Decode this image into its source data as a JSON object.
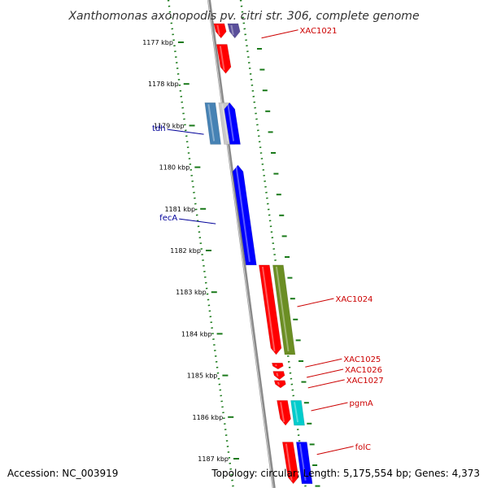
{
  "title": "Xanthomonas axonopodis pv. citri str. 306, complete genome",
  "footer": {
    "accession": "Accession: NC_003919",
    "summary": "Topology: circular; Length: 5,175,554 bp; Genes: 4,373"
  },
  "ticks": [
    {
      "kbp": 1177,
      "label": "1177 kbp"
    },
    {
      "kbp": 1178,
      "label": "1178 kbp"
    },
    {
      "kbp": 1179,
      "label": "1179 kbp"
    },
    {
      "kbp": 1180,
      "label": "1180 kbp"
    },
    {
      "kbp": 1181,
      "label": "1181 kbp"
    },
    {
      "kbp": 1182,
      "label": "1182 kbp"
    },
    {
      "kbp": 1183,
      "label": "1183 kbp"
    },
    {
      "kbp": 1184,
      "label": "1184 kbp"
    },
    {
      "kbp": 1185,
      "label": "1185 kbp"
    },
    {
      "kbp": 1186,
      "label": "1186 kbp"
    },
    {
      "kbp": 1187,
      "label": "1187 kbp"
    }
  ],
  "colors": {
    "red": "#ff0000",
    "blue": "#0000ff",
    "steelblue": "#4682b4",
    "olive": "#6b8e23",
    "cyan": "#00cccc",
    "navy": "#5a4f9a",
    "grey": "#c8c8c8",
    "tick_green": "#1a7a1a",
    "label_red": "#cc0000",
    "label_blue": "#000099"
  },
  "features": [
    {
      "lane": "left",
      "start": 1176.55,
      "end": 1176.9,
      "color": "red",
      "dir": "down"
    },
    {
      "lane": "left",
      "start": 1176.55,
      "end": 1176.9,
      "color": "navy",
      "dir": "down",
      "lane2": true
    },
    {
      "lane": "left",
      "start": 1177.05,
      "end": 1177.75,
      "color": "red",
      "dir": "down"
    },
    {
      "lane": "innerL",
      "start": 1178.45,
      "end": 1179.45,
      "color": "steelblue",
      "dir": "none"
    },
    {
      "lane": "innerL",
      "start": 1178.45,
      "end": 1179.45,
      "color": "grey",
      "dir": "none",
      "lane2": true
    },
    {
      "lane": "left",
      "start": 1178.45,
      "end": 1179.45,
      "color": "blue",
      "dir": "up"
    },
    {
      "lane": "left",
      "start": 1179.95,
      "end": 1182.35,
      "color": "blue",
      "dir": "up"
    },
    {
      "lane": "right",
      "start": 1182.35,
      "end": 1184.5,
      "color": "red",
      "dir": "down"
    },
    {
      "lane": "right",
      "start": 1182.35,
      "end": 1184.5,
      "color": "olive",
      "dir": "none",
      "lane2": true
    },
    {
      "lane": "right",
      "start": 1184.7,
      "end": 1184.85,
      "color": "red",
      "dir": "down"
    },
    {
      "lane": "right",
      "start": 1184.9,
      "end": 1185.1,
      "color": "red",
      "dir": "down"
    },
    {
      "lane": "right",
      "start": 1185.12,
      "end": 1185.3,
      "color": "red",
      "dir": "down"
    },
    {
      "lane": "right",
      "start": 1185.6,
      "end": 1186.2,
      "color": "red",
      "dir": "down"
    },
    {
      "lane": "right",
      "start": 1185.6,
      "end": 1186.2,
      "color": "cyan",
      "dir": "none",
      "lane2": true
    },
    {
      "lane": "right",
      "start": 1186.6,
      "end": 1187.6,
      "color": "red",
      "dir": "down"
    },
    {
      "lane": "right",
      "start": 1186.6,
      "end": 1187.6,
      "color": "blue",
      "dir": "none",
      "lane2": true
    }
  ],
  "gene_labels": [
    {
      "text": "XAC1021",
      "side": "right",
      "kbp": 1176.8,
      "color": "label_red"
    },
    {
      "text": "tdh",
      "side": "left",
      "kbp": 1179.15,
      "color": "label_blue"
    },
    {
      "text": "fecA",
      "side": "left",
      "kbp": 1181.3,
      "color": "label_blue"
    },
    {
      "text": "XAC1024",
      "side": "right",
      "kbp": 1183.25,
      "color": "label_red"
    },
    {
      "text": "XAC1025",
      "side": "right",
      "kbp": 1184.7,
      "color": "label_red"
    },
    {
      "text": "XAC1026",
      "side": "right",
      "kbp": 1184.95,
      "color": "label_red"
    },
    {
      "text": "XAC1027",
      "side": "right",
      "kbp": 1185.2,
      "color": "label_red"
    },
    {
      "text": "pgmA",
      "side": "right",
      "kbp": 1185.75,
      "color": "label_red"
    },
    {
      "text": "folC",
      "side": "right",
      "kbp": 1186.8,
      "color": "label_red"
    }
  ]
}
